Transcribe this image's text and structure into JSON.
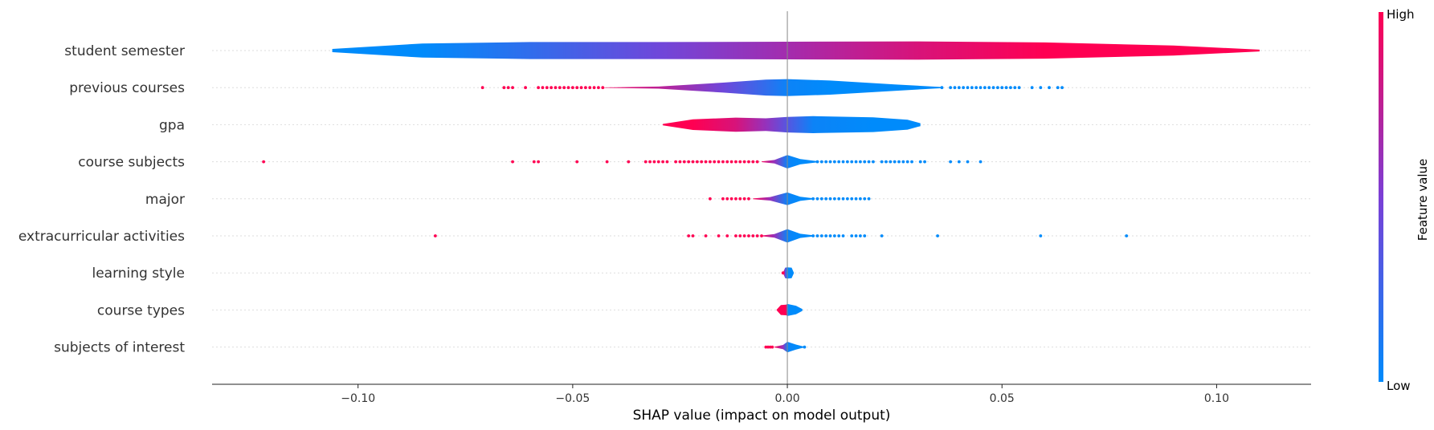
{
  "chart_data": {
    "type": "violin",
    "xlabel": "SHAP value (impact on model output)",
    "xlim": [
      -0.134,
      0.122
    ],
    "xticks": [
      {
        "value": -0.1,
        "label": "−0.10"
      },
      {
        "value": -0.05,
        "label": "−0.05"
      },
      {
        "value": 0.0,
        "label": "0.00"
      },
      {
        "value": 0.05,
        "label": "0.05"
      },
      {
        "value": 0.1,
        "label": "0.10"
      }
    ],
    "colorbar": {
      "label": "Feature value",
      "high_label": "High",
      "low_label": "Low",
      "high_color": "#ff0052",
      "mid_color": "#7b3fd6",
      "low_color": "#008bfb"
    },
    "features": [
      {
        "name": "student semester",
        "profile": [
          [
            -0.106,
            0.09,
            0.0
          ],
          [
            -0.085,
            0.4,
            0.0
          ],
          [
            -0.06,
            0.48,
            0.2
          ],
          [
            -0.03,
            0.48,
            0.45
          ],
          [
            0.0,
            0.5,
            0.65
          ],
          [
            0.03,
            0.52,
            0.85
          ],
          [
            0.06,
            0.46,
            1.0
          ],
          [
            0.09,
            0.28,
            1.0
          ],
          [
            0.11,
            0.05,
            1.0
          ]
        ],
        "red_dots": [],
        "blue_dots": []
      },
      {
        "name": "previous courses",
        "profile": [
          [
            -0.043,
            0.01,
            0.95
          ],
          [
            -0.03,
            0.06,
            0.75
          ],
          [
            -0.015,
            0.28,
            0.45
          ],
          [
            -0.005,
            0.45,
            0.2
          ],
          [
            0.0,
            0.48,
            0.05
          ],
          [
            0.01,
            0.4,
            0.0
          ],
          [
            0.025,
            0.18,
            0.0
          ],
          [
            0.036,
            0.03,
            0.0
          ]
        ],
        "red_dots": [
          -0.071,
          -0.066,
          -0.065,
          -0.064,
          -0.061,
          -0.058,
          -0.057,
          -0.056,
          -0.055,
          -0.054,
          -0.053,
          -0.052,
          -0.051,
          -0.05,
          -0.049,
          -0.048,
          -0.047,
          -0.046,
          -0.045,
          -0.044,
          -0.043
        ],
        "blue_dots": [
          0.036,
          0.038,
          0.039,
          0.04,
          0.041,
          0.042,
          0.043,
          0.044,
          0.045,
          0.046,
          0.047,
          0.048,
          0.049,
          0.05,
          0.051,
          0.052,
          0.053,
          0.054,
          0.057,
          0.059,
          0.061,
          0.063,
          0.064
        ]
      },
      {
        "name": "gpa",
        "profile": [
          [
            -0.029,
            0.04,
            1.0
          ],
          [
            -0.022,
            0.3,
            1.0
          ],
          [
            -0.012,
            0.4,
            0.85
          ],
          [
            -0.005,
            0.36,
            0.6
          ],
          [
            0.0,
            0.44,
            0.35
          ],
          [
            0.006,
            0.48,
            0.05
          ],
          [
            0.02,
            0.42,
            0.0
          ],
          [
            0.028,
            0.28,
            0.0
          ],
          [
            0.031,
            0.08,
            0.0
          ]
        ],
        "red_dots": [],
        "blue_dots": []
      },
      {
        "name": "course subjects",
        "profile": [
          [
            -0.006,
            0.02,
            0.95
          ],
          [
            -0.003,
            0.1,
            0.6
          ],
          [
            0.0,
            0.38,
            0.05
          ],
          [
            0.003,
            0.15,
            0.0
          ],
          [
            0.007,
            0.03,
            0.0
          ]
        ],
        "red_dots": [
          -0.122,
          -0.064,
          -0.059,
          -0.058,
          -0.049,
          -0.042,
          -0.037,
          -0.033,
          -0.032,
          -0.031,
          -0.03,
          -0.029,
          -0.028,
          -0.026,
          -0.025,
          -0.024,
          -0.023,
          -0.022,
          -0.021,
          -0.02,
          -0.019,
          -0.018,
          -0.017,
          -0.016,
          -0.015,
          -0.014,
          -0.013,
          -0.012,
          -0.011,
          -0.01,
          -0.009,
          -0.008,
          -0.007
        ],
        "blue_dots": [
          0.007,
          0.008,
          0.009,
          0.01,
          0.011,
          0.012,
          0.013,
          0.014,
          0.015,
          0.016,
          0.017,
          0.018,
          0.019,
          0.02,
          0.022,
          0.023,
          0.024,
          0.025,
          0.026,
          0.027,
          0.028,
          0.029,
          0.031,
          0.032,
          0.038,
          0.04,
          0.042,
          0.045
        ]
      },
      {
        "name": "major",
        "profile": [
          [
            -0.008,
            0.02,
            1.0
          ],
          [
            -0.004,
            0.1,
            0.6
          ],
          [
            0.0,
            0.36,
            0.05
          ],
          [
            0.003,
            0.12,
            0.0
          ],
          [
            0.006,
            0.03,
            0.0
          ]
        ],
        "red_dots": [
          -0.018,
          -0.015,
          -0.014,
          -0.013,
          -0.012,
          -0.011,
          -0.01,
          -0.009
        ],
        "blue_dots": [
          0.006,
          0.007,
          0.008,
          0.009,
          0.01,
          0.011,
          0.012,
          0.013,
          0.014,
          0.015,
          0.016,
          0.017,
          0.018,
          0.019
        ]
      },
      {
        "name": "extracurricular activities",
        "profile": [
          [
            -0.006,
            0.02,
            1.0
          ],
          [
            -0.003,
            0.1,
            0.6
          ],
          [
            0.0,
            0.38,
            0.05
          ],
          [
            0.003,
            0.12,
            0.0
          ],
          [
            0.006,
            0.03,
            0.0
          ]
        ],
        "red_dots": [
          -0.082,
          -0.023,
          -0.022,
          -0.019,
          -0.016,
          -0.014,
          -0.012,
          -0.011,
          -0.01,
          -0.009,
          -0.008,
          -0.007,
          -0.006
        ],
        "blue_dots": [
          0.006,
          0.007,
          0.008,
          0.009,
          0.01,
          0.011,
          0.012,
          0.013,
          0.015,
          0.016,
          0.017,
          0.018,
          0.022,
          0.035,
          0.059,
          0.079
        ]
      },
      {
        "name": "learning style",
        "profile": [
          [
            -0.001,
            0.02,
            1.0
          ],
          [
            -0.0005,
            0.3,
            0.4
          ],
          [
            0.0,
            0.32,
            0.0
          ],
          [
            0.001,
            0.3,
            0.0
          ],
          [
            0.0015,
            0.02,
            0.0
          ]
        ],
        "red_dots": [
          -0.001
        ],
        "blue_dots": []
      },
      {
        "name": "course types",
        "profile": [
          [
            -0.0025,
            0.02,
            1.0
          ],
          [
            -0.0015,
            0.28,
            1.0
          ],
          [
            -0.0003,
            0.3,
            1.0
          ],
          [
            0.0,
            0.34,
            0.0
          ],
          [
            0.002,
            0.24,
            0.0
          ],
          [
            0.0035,
            0.05,
            0.0
          ]
        ],
        "red_dots": [],
        "blue_dots": []
      },
      {
        "name": "subjects of interest",
        "profile": [
          [
            -0.003,
            0.02,
            1.0
          ],
          [
            -0.001,
            0.12,
            0.6
          ],
          [
            0.0,
            0.3,
            0.05
          ],
          [
            0.002,
            0.14,
            0.0
          ],
          [
            0.004,
            0.02,
            0.0
          ]
        ],
        "red_dots": [
          -0.005,
          -0.0045,
          -0.004,
          -0.0035
        ],
        "blue_dots": [
          0.004
        ]
      }
    ]
  }
}
